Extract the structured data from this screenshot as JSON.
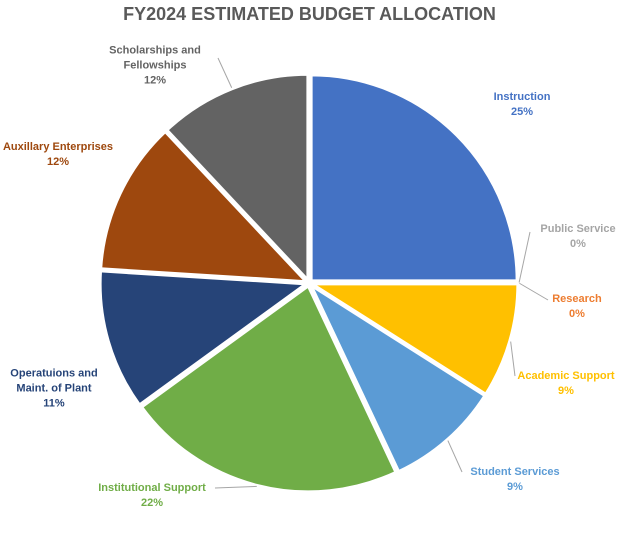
{
  "chart_data": {
    "type": "pie",
    "title": "FY2024 ESTIMATED BUDGET ALLOCATION",
    "categories": [
      "Instruction",
      "Public Service",
      "Research",
      "Academic Support",
      "Student Services",
      "Institutional Support",
      "Operatuions and Maint. of Plant",
      "Auxillary Enterprises",
      "Scholarships and Fellowships"
    ],
    "values": [
      25,
      0,
      0,
      9,
      9,
      22,
      11,
      12,
      12
    ],
    "value_labels": [
      "25%",
      "0%",
      "0%",
      "9%",
      "9%",
      "22%",
      "11%",
      "12%",
      "12%"
    ],
    "colors": [
      "#4472c4",
      "#a5a5a5",
      "#ed7d31",
      "#ffc000",
      "#5b9bd5",
      "#70ad47",
      "#264478",
      "#9e480e",
      "#636363"
    ]
  }
}
